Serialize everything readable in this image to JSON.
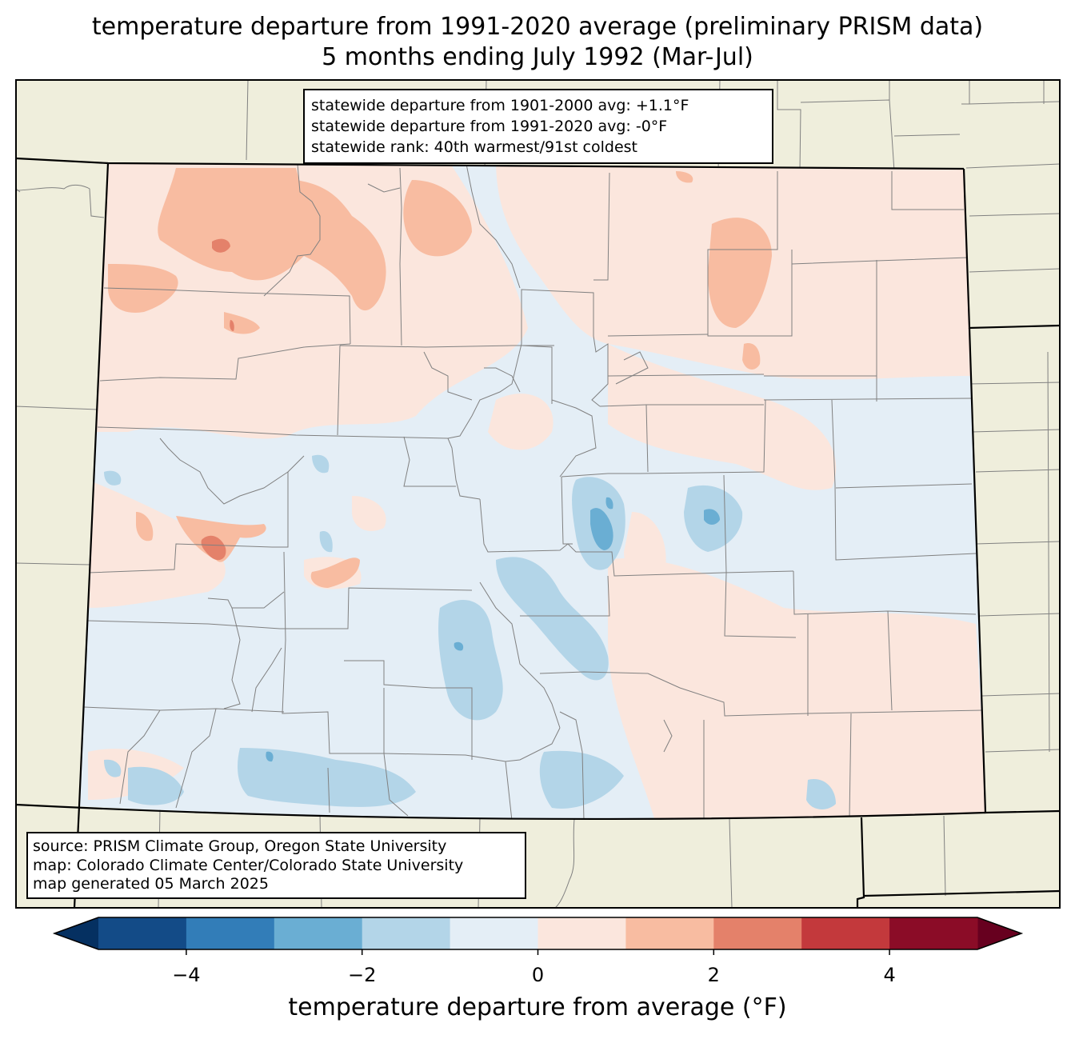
{
  "title": {
    "line1": "temperature departure from 1991-2020 average (preliminary PRISM data)",
    "line2": "5 months ending July 1992 (Mar-Jul)"
  },
  "stats": {
    "line1": "statewide departure from 1901-2000 avg: +1.1°F",
    "line2": "statewide departure from 1991-2020 avg: -0°F",
    "line3": "statewide rank: 40th warmest/91st coldest"
  },
  "source": {
    "line1": "source: PRISM Climate Group, Oregon State University",
    "line2": "map: Colorado Climate Center/Colorado State University",
    "line3": "map generated 05 March 2025"
  },
  "colorbar": {
    "label": "temperature departure from average (°F)",
    "ticks": [
      {
        "value": -4,
        "label": "−4"
      },
      {
        "value": -2,
        "label": "−2"
      },
      {
        "value": 0,
        "label": "0"
      },
      {
        "value": 2,
        "label": "2"
      },
      {
        "value": 4,
        "label": "4"
      }
    ],
    "range": [
      -5,
      5
    ],
    "bins": [
      {
        "from": -5,
        "to": -4,
        "color": "#134b87"
      },
      {
        "from": -4,
        "to": -3,
        "color": "#327db8"
      },
      {
        "from": -3,
        "to": -2,
        "color": "#6aaed3"
      },
      {
        "from": -2,
        "to": -1,
        "color": "#b3d5e8"
      },
      {
        "from": -1,
        "to": 0,
        "color": "#e4eef6"
      },
      {
        "from": 0,
        "to": 1,
        "color": "#fbe6dd"
      },
      {
        "from": 1,
        "to": 2,
        "color": "#f8bca1"
      },
      {
        "from": 2,
        "to": 3,
        "color": "#e4816a"
      },
      {
        "from": 3,
        "to": 4,
        "color": "#c3393c"
      },
      {
        "from": 4,
        "to": 5,
        "color": "#8b0c27"
      }
    ],
    "under_color": "#053061",
    "over_color": "#67001f"
  },
  "colors": {
    "land_background": "#efeedc",
    "state_border": "#000000",
    "county_border": "#808080"
  }
}
